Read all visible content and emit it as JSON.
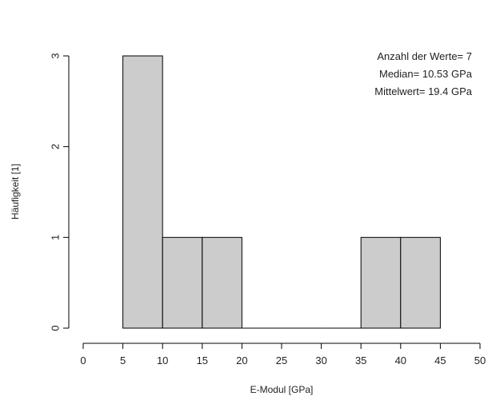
{
  "chart_data": {
    "type": "bar",
    "subtype": "histogram",
    "bins": [
      {
        "from": 5,
        "to": 10,
        "count": 3
      },
      {
        "from": 10,
        "to": 15,
        "count": 1
      },
      {
        "from": 15,
        "to": 20,
        "count": 1
      },
      {
        "from": 20,
        "to": 25,
        "count": 0
      },
      {
        "from": 25,
        "to": 30,
        "count": 0
      },
      {
        "from": 30,
        "to": 35,
        "count": 0
      },
      {
        "from": 35,
        "to": 40,
        "count": 1
      },
      {
        "from": 40,
        "to": 45,
        "count": 1
      }
    ],
    "xlabel": "E-Modul [GPa]",
    "ylabel": "Häufigkeit [1]",
    "xlim": [
      0,
      50
    ],
    "ylim": [
      0,
      3
    ],
    "x_ticks": [
      0,
      5,
      10,
      15,
      20,
      25,
      30,
      35,
      40,
      45,
      50
    ],
    "y_ticks": [
      0,
      1,
      2,
      3
    ],
    "grid": false,
    "bar_color": "#cccccc",
    "annotations": [
      "Anzahl der Werte= 7",
      "Median= 10.53 GPa",
      "Mittelwert= 19.4 GPa"
    ]
  }
}
